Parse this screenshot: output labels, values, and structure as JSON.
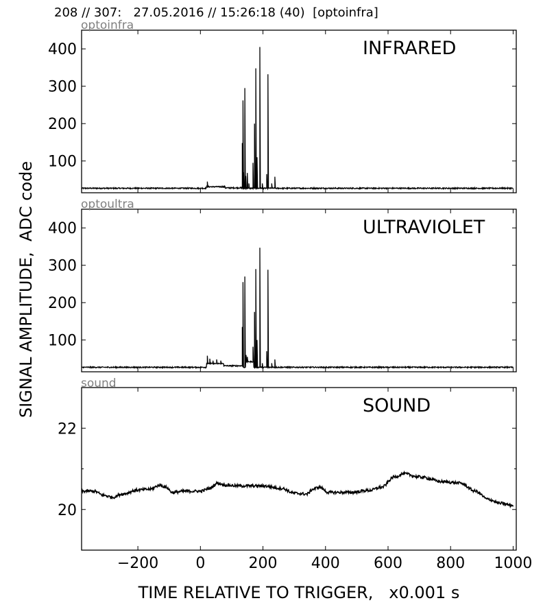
{
  "header": {
    "text": "208 // 307:   27.05.2016 // 15:26:18 (40)  [optoinfra]"
  },
  "labels": {
    "ylabel": "SIGNAL AMPLITUDE,  ADC code",
    "xlabel": "TIME RELATIVE TO TRIGGER,   x0.001 s"
  },
  "chart_data": [
    {
      "type": "line",
      "subtitle": "optoinfra",
      "title": "INFRARED",
      "xlim": [
        -380,
        1010
      ],
      "ylim": [
        15,
        450
      ],
      "xticks": [
        -200,
        0,
        200,
        400,
        600,
        800,
        1000
      ],
      "xtick_labels": [
        "−200",
        "0",
        "200",
        "400",
        "600",
        "800",
        "1000"
      ],
      "show_xtick_labels": false,
      "yticks": [
        100,
        200,
        300,
        400
      ],
      "ytick_labels": [
        "100",
        "200",
        "300",
        "400"
      ],
      "baseline": 27,
      "noise": 1.5,
      "bumps": [
        {
          "x0": 20,
          "x1": 80,
          "y": 31
        },
        {
          "x0": 80,
          "x1": 135,
          "y": 28
        }
      ],
      "spikes": [
        {
          "x": 22,
          "y": 45
        },
        {
          "x": 134,
          "y": 148
        },
        {
          "x": 136,
          "y": 262
        },
        {
          "x": 138,
          "y": 70
        },
        {
          "x": 142,
          "y": 295
        },
        {
          "x": 145,
          "y": 60
        },
        {
          "x": 150,
          "y": 68
        },
        {
          "x": 155,
          "y": 40
        },
        {
          "x": 168,
          "y": 95
        },
        {
          "x": 173,
          "y": 200
        },
        {
          "x": 177,
          "y": 348
        },
        {
          "x": 181,
          "y": 110
        },
        {
          "x": 190,
          "y": 405
        },
        {
          "x": 198,
          "y": 40
        },
        {
          "x": 212,
          "y": 65
        },
        {
          "x": 216,
          "y": 332
        },
        {
          "x": 228,
          "y": 40
        },
        {
          "x": 238,
          "y": 58
        }
      ]
    },
    {
      "type": "line",
      "subtitle": "optoultra",
      "title": "ULTRAVIOLET",
      "xlim": [
        -380,
        1010
      ],
      "ylim": [
        15,
        450
      ],
      "xticks": [
        -200,
        0,
        200,
        400,
        600,
        800,
        1000
      ],
      "xtick_labels": [
        "−200",
        "0",
        "200",
        "400",
        "600",
        "800",
        "1000"
      ],
      "show_xtick_labels": false,
      "yticks": [
        100,
        200,
        300,
        400
      ],
      "ytick_labels": [
        "100",
        "200",
        "300",
        "400"
      ],
      "baseline": 27,
      "noise": 1.5,
      "bumps": [
        {
          "x0": 20,
          "x1": 75,
          "y": 37
        },
        {
          "x0": 75,
          "x1": 135,
          "y": 31
        },
        {
          "x0": 145,
          "x1": 170,
          "y": 42
        }
      ],
      "spikes": [
        {
          "x": 22,
          "y": 58
        },
        {
          "x": 30,
          "y": 50
        },
        {
          "x": 40,
          "y": 45
        },
        {
          "x": 52,
          "y": 48
        },
        {
          "x": 65,
          "y": 45
        },
        {
          "x": 134,
          "y": 135
        },
        {
          "x": 136,
          "y": 255
        },
        {
          "x": 142,
          "y": 270
        },
        {
          "x": 146,
          "y": 60
        },
        {
          "x": 150,
          "y": 55
        },
        {
          "x": 168,
          "y": 82
        },
        {
          "x": 173,
          "y": 175
        },
        {
          "x": 177,
          "y": 290
        },
        {
          "x": 181,
          "y": 100
        },
        {
          "x": 190,
          "y": 347
        },
        {
          "x": 198,
          "y": 38
        },
        {
          "x": 212,
          "y": 70
        },
        {
          "x": 216,
          "y": 288
        },
        {
          "x": 228,
          "y": 38
        },
        {
          "x": 238,
          "y": 48
        }
      ]
    },
    {
      "type": "line",
      "subtitle": "sound",
      "title": "SOUND",
      "xlim": [
        -380,
        1010
      ],
      "ylim": [
        19.0,
        23.0
      ],
      "xticks": [
        -200,
        0,
        200,
        400,
        600,
        800,
        1000
      ],
      "xtick_labels": [
        "−200",
        "0",
        "200",
        "400",
        "600",
        "800",
        "1000"
      ],
      "show_xtick_labels": true,
      "yticks": [
        20,
        22
      ],
      "ytick_labels": [
        "20",
        "22"
      ],
      "minor_yticks": [
        21
      ],
      "noise": 0.035,
      "points": [
        [
          -380,
          20.45
        ],
        [
          -340,
          20.45
        ],
        [
          -310,
          20.35
        ],
        [
          -280,
          20.3
        ],
        [
          -250,
          20.38
        ],
        [
          -200,
          20.48
        ],
        [
          -160,
          20.5
        ],
        [
          -130,
          20.6
        ],
        [
          -110,
          20.55
        ],
        [
          -90,
          20.42
        ],
        [
          -50,
          20.45
        ],
        [
          0,
          20.45
        ],
        [
          30,
          20.52
        ],
        [
          55,
          20.65
        ],
        [
          80,
          20.6
        ],
        [
          120,
          20.58
        ],
        [
          200,
          20.58
        ],
        [
          260,
          20.52
        ],
        [
          300,
          20.4
        ],
        [
          340,
          20.38
        ],
        [
          360,
          20.5
        ],
        [
          380,
          20.55
        ],
        [
          410,
          20.42
        ],
        [
          480,
          20.42
        ],
        [
          540,
          20.47
        ],
        [
          580,
          20.55
        ],
        [
          620,
          20.8
        ],
        [
          650,
          20.88
        ],
        [
          700,
          20.8
        ],
        [
          780,
          20.68
        ],
        [
          830,
          20.65
        ],
        [
          880,
          20.45
        ],
        [
          920,
          20.25
        ],
        [
          960,
          20.15
        ],
        [
          1000,
          20.1
        ]
      ]
    }
  ]
}
